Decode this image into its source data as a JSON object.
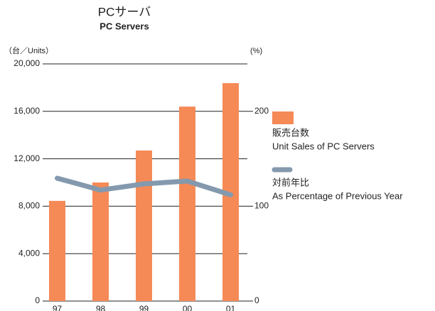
{
  "chart_data": {
    "type": "bar",
    "title": "PCサーバ",
    "subtitle": "PC Servers",
    "ylabel": "（台／Units）",
    "y2label": "(%)",
    "categories": [
      "97",
      "98",
      "99",
      "00",
      "01"
    ],
    "series": [
      {
        "name": "販売台数",
        "name_en": "Unit Sales of PC Servers",
        "type": "bar",
        "color": "#f58a57",
        "values": [
          8450,
          10000,
          12700,
          16400,
          18380
        ]
      },
      {
        "name": "対前年比",
        "name_en": "As Percentage of Previous Year",
        "type": "line",
        "axis": "y2",
        "color": "#8499ad",
        "values": [
          129.5,
          117,
          123.5,
          126.5,
          112
        ]
      }
    ],
    "ylim": [
      0,
      20000
    ],
    "yticks": [
      0,
      {
        "value": 4000,
        "label": "4,000"
      },
      {
        "value": 8000,
        "label": "8,000"
      },
      {
        "value": 12000,
        "label": "12,000"
      },
      {
        "value": 16000,
        "label": "16,000"
      },
      {
        "value": 20000,
        "label": "20,000"
      }
    ],
    "y2lim": [
      0,
      250
    ],
    "y2ticks": [
      0,
      100,
      200
    ],
    "grid": true
  }
}
